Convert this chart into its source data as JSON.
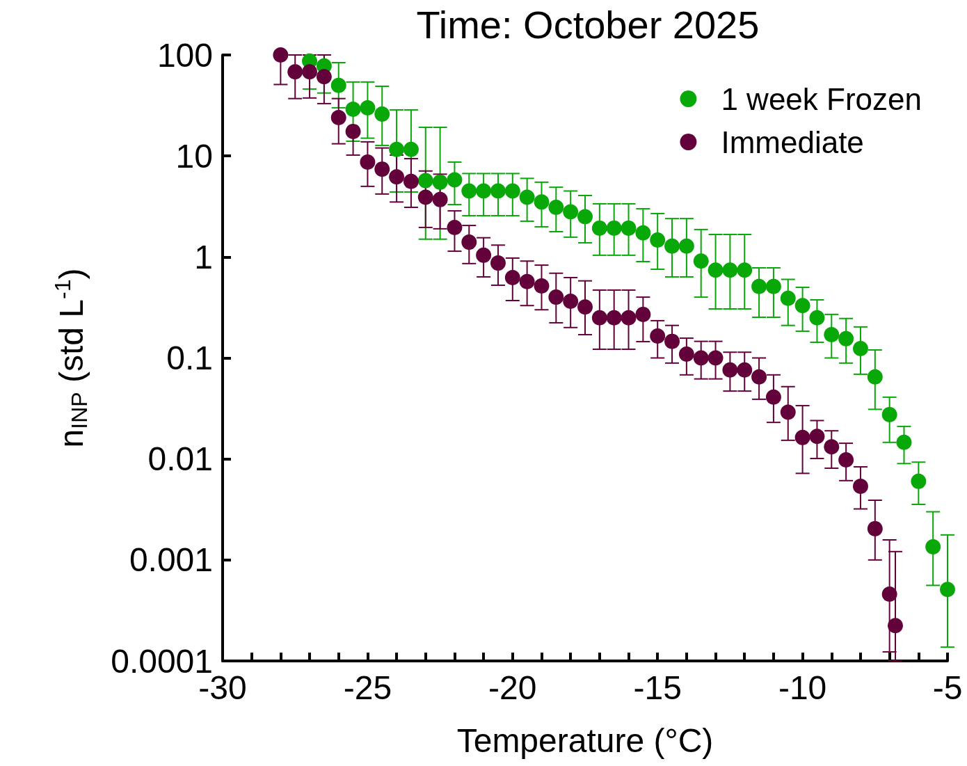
{
  "chart_data": {
    "type": "scatter",
    "title": "Time: October 2025",
    "xlabel": "Temperature (°C)",
    "ylabel": "n$_{INP}$ (std L$^{-1}$)",
    "log": "y",
    "xlim": [
      -30,
      -5
    ],
    "ylim": [
      0.0001,
      100
    ],
    "xticks": [
      -30,
      {
        "value": -29,
        "label": null
      },
      {
        "value": -28,
        "label": null
      },
      {
        "value": -27,
        "label": null
      },
      {
        "value": -26,
        "label": null
      },
      -25,
      {
        "value": -24,
        "label": null
      },
      {
        "value": -23,
        "label": null
      },
      {
        "value": -22,
        "label": null
      },
      {
        "value": -21,
        "label": null
      },
      -20,
      {
        "value": -19,
        "label": null
      },
      {
        "value": -18,
        "label": null
      },
      {
        "value": -17,
        "label": null
      },
      {
        "value": -16,
        "label": null
      },
      -15,
      {
        "value": -14,
        "label": null
      },
      {
        "value": -13,
        "label": null
      },
      {
        "value": -12,
        "label": null
      },
      {
        "value": -11,
        "label": null
      },
      -10,
      {
        "value": -9,
        "label": null
      },
      {
        "value": -8,
        "label": null
      },
      {
        "value": -7,
        "label": null
      },
      {
        "value": -6,
        "label": null
      },
      -5
    ],
    "yticks": [
      0.0001,
      0.001,
      0.01,
      0.1,
      1,
      10,
      100
    ],
    "grid": false,
    "legend": "top right",
    "marker": "circle",
    "series": [
      {
        "name": "1 week Frozen",
        "color": "#07a807",
        "x": [
          -27,
          -26.5,
          -26,
          -25.5,
          -25,
          -24.5,
          -24,
          -23.5,
          -23,
          -22.5,
          -22,
          -21.5,
          -21,
          -20.5,
          -20,
          -19.5,
          -19,
          -18.5,
          -18,
          -17.5,
          -17,
          -16.5,
          -16,
          -15.5,
          -15,
          -14.5,
          -14,
          -13.5,
          -13,
          -12.5,
          -12,
          -11.5,
          -11,
          -10.5,
          -10,
          -9.5,
          -9,
          -8.5,
          -8,
          -7.5,
          -7,
          -6.5,
          -6,
          -5.5,
          -5
        ],
        "values": [
          87,
          78,
          50,
          29,
          30,
          26,
          11.6,
          11.6,
          5.7,
          5.5,
          5.8,
          4.5,
          4.5,
          4.5,
          4.5,
          3.9,
          3.5,
          3.1,
          2.8,
          2.5,
          1.93,
          1.93,
          1.93,
          1.73,
          1.47,
          1.28,
          1.28,
          0.91,
          0.74,
          0.74,
          0.74,
          0.51,
          0.51,
          0.39,
          0.33,
          0.25,
          0.17,
          0.155,
          0.124,
          0.065,
          0.0275,
          0.0146,
          0.006,
          0.00135,
          0.00051
        ],
        "errors": [
          [
            46,
            100
          ],
          [
            42,
            100
          ],
          [
            30,
            84
          ],
          [
            14,
            54
          ],
          [
            15,
            54
          ],
          [
            12.7,
            49
          ],
          [
            4.4,
            28.6
          ],
          [
            4.4,
            28.6
          ],
          [
            1.5,
            19.2
          ],
          [
            1.5,
            19.2
          ],
          [
            3.3,
            8.7
          ],
          [
            2.56,
            6.7
          ],
          [
            2.56,
            6.7
          ],
          [
            2.56,
            6.7
          ],
          [
            2.56,
            6.7
          ],
          [
            2.26,
            6
          ],
          [
            1.99,
            5.5
          ],
          [
            1.78,
            4.9
          ],
          [
            1.57,
            4.5
          ],
          [
            1.38,
            4.06
          ],
          [
            1.04,
            3.36
          ],
          [
            1.04,
            3.36
          ],
          [
            1.04,
            3.36
          ],
          [
            0.9,
            3
          ],
          [
            0.755,
            2.69
          ],
          [
            0.635,
            2.4
          ],
          [
            0.635,
            2.4
          ],
          [
            0.4,
            1.87
          ],
          [
            0.306,
            1.67
          ],
          [
            0.306,
            1.67
          ],
          [
            0.306,
            1.67
          ],
          [
            0.253,
            0.78
          ],
          [
            0.253,
            0.78
          ],
          [
            0.21,
            0.6
          ],
          [
            0.184,
            0.5
          ],
          [
            0.143,
            0.376
          ],
          [
            0.1,
            0.27
          ],
          [
            0.089,
            0.246
          ],
          [
            0.069,
            0.203
          ],
          [
            0.031,
            0.12
          ],
          [
            0.0146,
            0.0409
          ],
          [
            0.009,
            0.021
          ],
          [
            0.00355,
            0.0093
          ],
          [
            0.00056,
            0.003
          ],
          [
            0.000137,
            0.00177
          ]
        ]
      },
      {
        "name": "Immediate",
        "color": "#63023a",
        "x": [
          -28,
          -27.5,
          -27,
          -26.5,
          -26,
          -25.5,
          -25,
          -24.5,
          -24,
          -23.5,
          -23,
          -22.5,
          -22,
          -21.5,
          -21,
          -20.5,
          -20,
          -19.5,
          -19,
          -18.5,
          -18,
          -17.5,
          -17,
          -16.5,
          -16,
          -15.5,
          -15,
          -14.5,
          -14,
          -13.5,
          -13,
          -12.5,
          -12,
          -11.5,
          -11,
          -10.5,
          -10,
          -9.5,
          -9,
          -8.5,
          -8,
          -7.5,
          -7,
          -6.8
        ],
        "values": [
          100,
          68,
          68,
          61,
          24,
          17.5,
          8.7,
          7.4,
          6.2,
          5.6,
          3.9,
          3.7,
          1.96,
          1.4,
          1.04,
          0.87,
          0.625,
          0.57,
          0.516,
          0.4,
          0.364,
          0.32,
          0.25,
          0.25,
          0.25,
          0.27,
          0.165,
          0.146,
          0.109,
          0.1,
          0.1,
          0.076,
          0.076,
          0.065,
          0.041,
          0.029,
          0.0163,
          0.0167,
          0.0132,
          0.0098,
          0.00536,
          0.00204,
          0.000458,
          0.000224
        ],
        "errors": [
          [
            51,
            100
          ],
          [
            37,
            100
          ],
          [
            37.5,
            100
          ],
          [
            33,
            100
          ],
          [
            13.2,
            37
          ],
          [
            10.2,
            17.5
          ],
          [
            5,
            13.8
          ],
          [
            4.2,
            12
          ],
          [
            3.5,
            10.2
          ],
          [
            3.1,
            9.4
          ],
          [
            1.96,
            7.1
          ],
          [
            1.9,
            6.6
          ],
          [
            1.14,
            2.86
          ],
          [
            0.86,
            2.05
          ],
          [
            0.635,
            1.55
          ],
          [
            0.525,
            1.31
          ],
          [
            0.37,
            0.975
          ],
          [
            0.33,
            0.91
          ],
          [
            0.3,
            0.83
          ],
          [
            0.223,
            0.69
          ],
          [
            0.2,
            0.625
          ],
          [
            0.17,
            0.58
          ],
          [
            0.122,
            0.47
          ],
          [
            0.122,
            0.47
          ],
          [
            0.122,
            0.47
          ],
          [
            0.145,
            0.4
          ],
          [
            0.1,
            0.234
          ],
          [
            0.089,
            0.21
          ],
          [
            0.068,
            0.157
          ],
          [
            0.062,
            0.146
          ],
          [
            0.062,
            0.146
          ],
          [
            0.047,
            0.114
          ],
          [
            0.047,
            0.114
          ],
          [
            0.039,
            0.1
          ],
          [
            0.023,
            0.068
          ],
          [
            0.0153,
            0.052
          ],
          [
            0.0072,
            0.0337
          ],
          [
            0.0101,
            0.024
          ],
          [
            0.0081,
            0.019
          ],
          [
            0.0061,
            0.0143
          ],
          [
            0.0032,
            0.00835
          ],
          [
            0.001,
            0.0039
          ],
          [
            0.000123,
            0.00158
          ],
          [
            0.0001,
            0.00121
          ]
        ]
      }
    ]
  }
}
